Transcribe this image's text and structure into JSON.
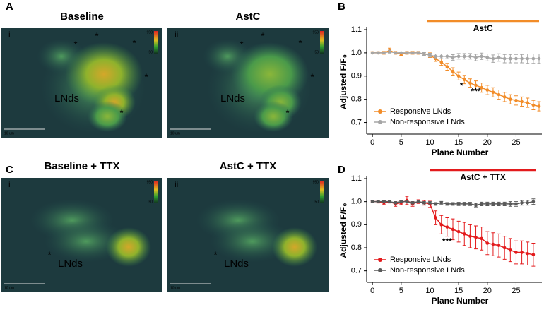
{
  "panels": [
    {
      "letter": "A",
      "images": [
        {
          "title": "Baseline",
          "numeral": "i",
          "label": "LNds",
          "asterisk": "*",
          "scale": "10 um",
          "cbar_max": "950",
          "cbar_min": "50"
        },
        {
          "title": "AstC",
          "numeral": "ii",
          "label": "LNds",
          "asterisk": "*",
          "scale": "10 um",
          "cbar_max": "950",
          "cbar_min": "50"
        }
      ]
    },
    {
      "letter": "C",
      "images": [
        {
          "title": "Baseline + TTX",
          "numeral": "i",
          "label": "LNds",
          "asterisk": "*",
          "scale": "10 um",
          "cbar_max": "950",
          "cbar_min": "50"
        },
        {
          "title": "AstC + TTX",
          "numeral": "ii",
          "label": "LNds",
          "asterisk": "*",
          "scale": "10 um",
          "cbar_max": "950",
          "cbar_min": "50"
        }
      ]
    }
  ],
  "chart_data": [
    {
      "type": "line",
      "letter": "B",
      "annotation": "AstC",
      "annotation_color": "#f28c28",
      "annotation_x": [
        9.5,
        29
      ],
      "significance": [
        "*",
        "***"
      ],
      "xlabel": "Plane Number",
      "ylabel": "Adjusted F/F₀",
      "x": [
        0,
        1,
        2,
        3,
        4,
        5,
        6,
        7,
        8,
        9,
        10,
        11,
        12,
        13,
        14,
        15,
        16,
        17,
        18,
        19,
        20,
        21,
        22,
        23,
        24,
        25,
        26,
        27,
        28,
        29
      ],
      "xlim": [
        -1,
        29
      ],
      "xticks": [
        0,
        5,
        10,
        15,
        20,
        25
      ],
      "ylim": [
        0.65,
        1.1
      ],
      "yticks": [
        0.7,
        0.8,
        0.9,
        {
          "value": 1,
          "label": "1.0"
        },
        1.1
      ],
      "series": [
        {
          "name": "Responsive LNds",
          "color": "#f28c28",
          "values": [
            1,
            1,
            1,
            1.01,
            1,
            0.995,
            1,
            1,
            1,
            0.995,
            0.99,
            0.975,
            0.96,
            0.94,
            0.92,
            0.9,
            0.885,
            0.87,
            0.86,
            0.85,
            0.84,
            0.83,
            0.82,
            0.81,
            0.8,
            0.795,
            0.79,
            0.785,
            0.775,
            0.77
          ],
          "errors": [
            0.005,
            0.005,
            0.006,
            0.01,
            0.006,
            0.006,
            0.006,
            0.006,
            0.006,
            0.008,
            0.01,
            0.012,
            0.014,
            0.015,
            0.016,
            0.017,
            0.018,
            0.018,
            0.019,
            0.02,
            0.02,
            0.02,
            0.02,
            0.02,
            0.02,
            0.02,
            0.02,
            0.02,
            0.02,
            0.02
          ]
        },
        {
          "name": "Non-responsive LNds",
          "color": "#a6a6a6",
          "values": [
            1,
            1,
            1,
            1.005,
            1,
            1,
            1,
            1,
            1,
            0.995,
            0.99,
            0.985,
            0.985,
            0.985,
            0.98,
            0.985,
            0.985,
            0.985,
            0.98,
            0.985,
            0.98,
            0.975,
            0.98,
            0.975,
            0.975,
            0.975,
            0.975,
            0.975,
            0.975,
            0.975
          ],
          "errors": [
            0.004,
            0.004,
            0.004,
            0.006,
            0.004,
            0.004,
            0.004,
            0.004,
            0.005,
            0.006,
            0.008,
            0.01,
            0.01,
            0.01,
            0.012,
            0.012,
            0.012,
            0.012,
            0.014,
            0.014,
            0.015,
            0.016,
            0.016,
            0.018,
            0.018,
            0.018,
            0.018,
            0.02,
            0.02,
            0.02
          ]
        }
      ]
    },
    {
      "type": "line",
      "letter": "D",
      "annotation": "AstC + TTX",
      "annotation_color": "#e31a1c",
      "annotation_x": [
        10,
        28.5
      ],
      "significance": [
        "***"
      ],
      "xlabel": "Plane Number",
      "ylabel": "Adjusted F/F₀",
      "x": [
        0,
        1,
        2,
        3,
        4,
        5,
        6,
        7,
        8,
        9,
        10,
        11,
        12,
        13,
        14,
        15,
        16,
        17,
        18,
        19,
        20,
        21,
        22,
        23,
        24,
        25,
        26,
        27,
        28
      ],
      "xlim": [
        -1,
        29
      ],
      "xticks": [
        0,
        5,
        10,
        15,
        20,
        25
      ],
      "ylim": [
        0.65,
        1.1
      ],
      "yticks": [
        0.7,
        0.8,
        0.9,
        {
          "value": 1,
          "label": "1.0"
        },
        1.1
      ],
      "series": [
        {
          "name": "Responsive LNds",
          "color": "#e31a1c",
          "values": [
            1,
            1,
            0.995,
            1,
            0.99,
            0.995,
            1.005,
            0.99,
            1,
            0.995,
            0.99,
            0.93,
            0.9,
            0.89,
            0.88,
            0.87,
            0.86,
            0.85,
            0.845,
            0.84,
            0.82,
            0.815,
            0.81,
            0.8,
            0.79,
            0.78,
            0.78,
            0.775,
            0.77
          ],
          "errors": [
            0.005,
            0.006,
            0.008,
            0.006,
            0.01,
            0.008,
            0.018,
            0.01,
            0.008,
            0.01,
            0.015,
            0.03,
            0.04,
            0.04,
            0.045,
            0.045,
            0.05,
            0.05,
            0.05,
            0.05,
            0.05,
            0.05,
            0.05,
            0.05,
            0.05,
            0.05,
            0.05,
            0.05,
            0.05
          ]
        },
        {
          "name": "Non-responsive LNds",
          "color": "#595959",
          "values": [
            1,
            1,
            1,
            1,
            0.995,
            1,
            1,
            0.995,
            1,
            0.995,
            0.995,
            0.99,
            0.995,
            0.99,
            0.99,
            0.99,
            0.99,
            0.99,
            0.985,
            0.99,
            0.99,
            0.99,
            0.99,
            0.99,
            0.99,
            0.99,
            0.995,
            0.995,
            1
          ],
          "errors": [
            0.004,
            0.004,
            0.004,
            0.004,
            0.005,
            0.004,
            0.005,
            0.005,
            0.005,
            0.005,
            0.005,
            0.006,
            0.006,
            0.006,
            0.006,
            0.007,
            0.007,
            0.007,
            0.008,
            0.008,
            0.008,
            0.008,
            0.008,
            0.008,
            0.01,
            0.01,
            0.01,
            0.01,
            0.012
          ]
        }
      ]
    }
  ]
}
